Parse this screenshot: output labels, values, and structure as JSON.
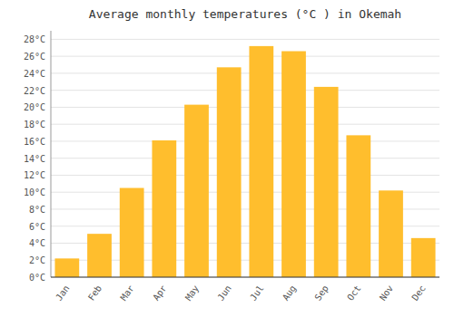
{
  "chart_data": {
    "type": "bar",
    "title": "Average monthly temperatures (°C ) in Okemah",
    "categories": [
      "Jan",
      "Feb",
      "Mar",
      "Apr",
      "May",
      "Jun",
      "Jul",
      "Aug",
      "Sep",
      "Oct",
      "Nov",
      "Dec"
    ],
    "values": [
      2.2,
      5.1,
      10.5,
      16.1,
      20.3,
      24.7,
      27.2,
      26.6,
      22.4,
      16.7,
      10.2,
      4.6
    ],
    "color": "#FFBE2D",
    "ylim": [
      0,
      29
    ],
    "yticks": [
      {
        "value": 0,
        "label": "0°C"
      },
      {
        "value": 2,
        "label": "2°C"
      },
      {
        "value": 4,
        "label": "4°C"
      },
      {
        "value": 6,
        "label": "6°C"
      },
      {
        "value": 8,
        "label": "8°C"
      },
      {
        "value": 10,
        "label": "10°C"
      },
      {
        "value": 12,
        "label": "12°C"
      },
      {
        "value": 14,
        "label": "14°C"
      },
      {
        "value": 16,
        "label": "16°C"
      },
      {
        "value": 18,
        "label": "18°C"
      },
      {
        "value": 20,
        "label": "20°C"
      },
      {
        "value": 22,
        "label": "22°C"
      },
      {
        "value": 24,
        "label": "24°C"
      },
      {
        "value": 26,
        "label": "26°C"
      },
      {
        "value": 28,
        "label": "28°C"
      }
    ],
    "grid": true
  }
}
